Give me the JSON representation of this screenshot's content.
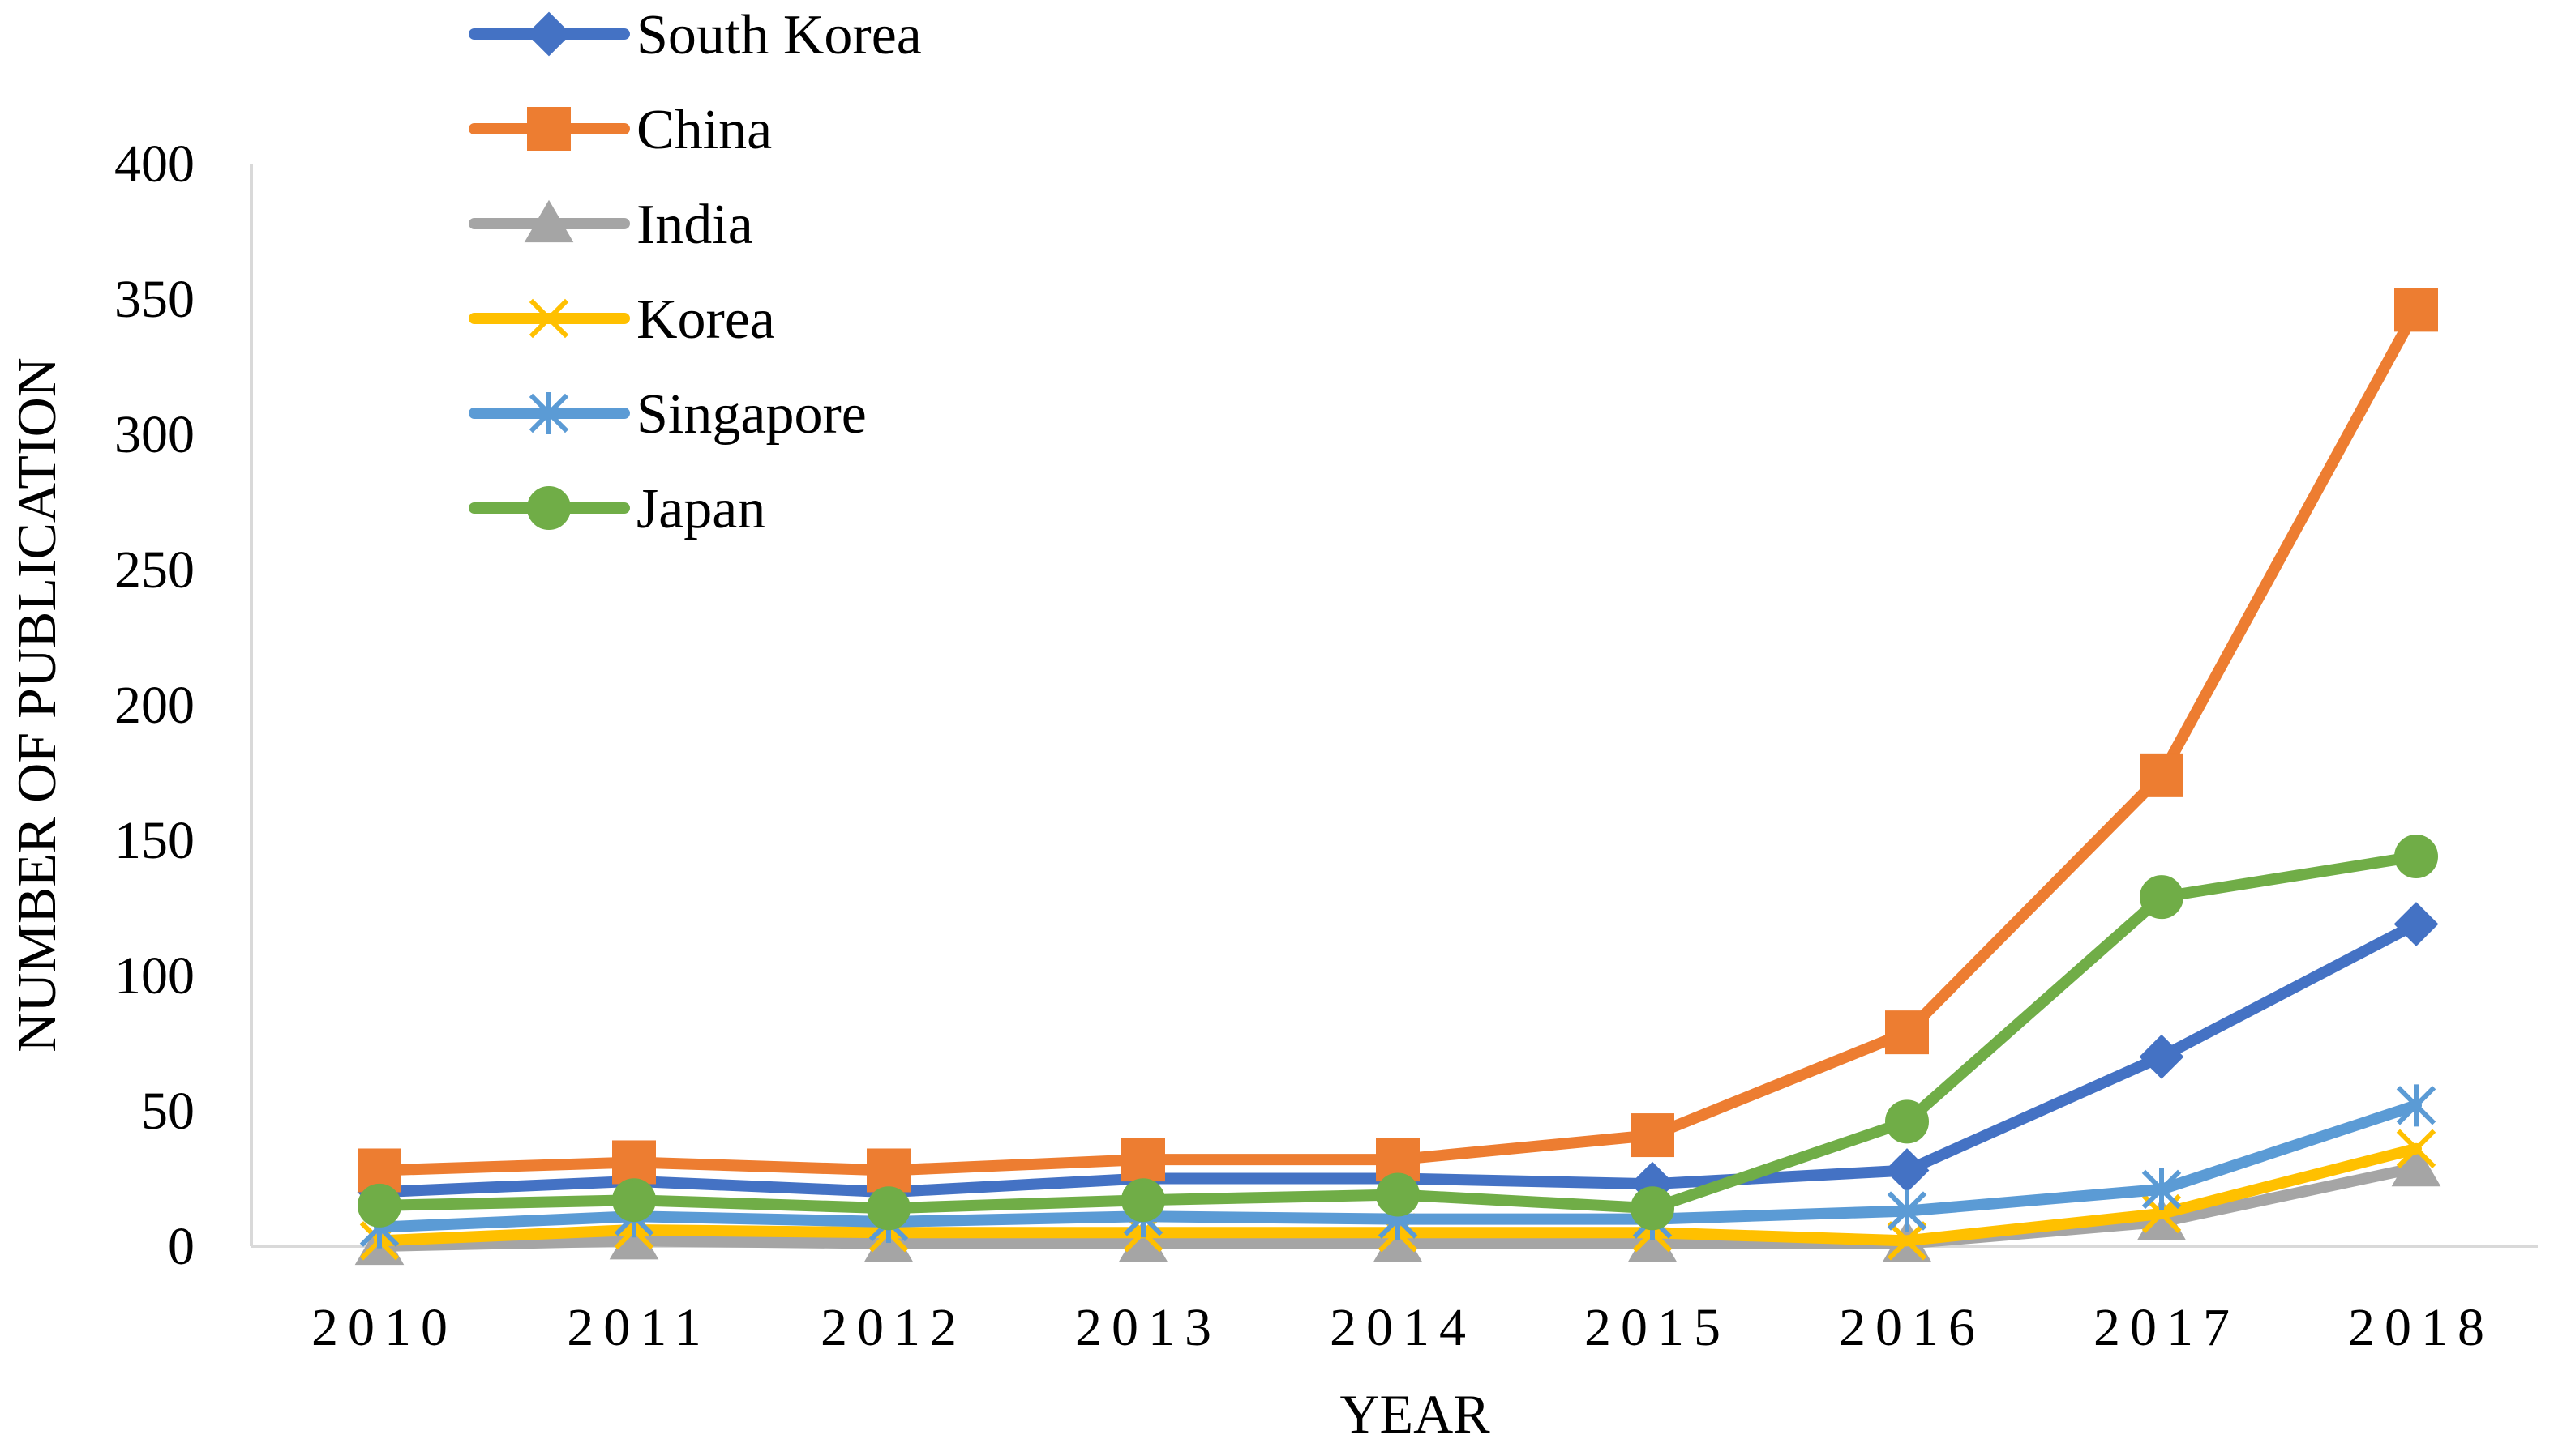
{
  "chart_data": {
    "type": "line",
    "title": "",
    "xlabel": "YEAR",
    "ylabel": "NUMBER OF PUBLICATION",
    "x": [
      "2010",
      "2011",
      "2012",
      "2013",
      "2014",
      "2015",
      "2016",
      "2017",
      "2018"
    ],
    "ylim": [
      0,
      400
    ],
    "yticks": [
      0,
      50,
      100,
      150,
      200,
      250,
      300,
      350,
      400
    ],
    "grid": false,
    "legend_position": "top-left",
    "series": [
      {
        "name": "South Korea",
        "color": "#4472C4",
        "marker": "diamond",
        "values": [
          20,
          24,
          20,
          25,
          25,
          23,
          28,
          70,
          119
        ]
      },
      {
        "name": "China",
        "color": "#ED7D31",
        "marker": "square",
        "values": [
          28,
          31,
          28,
          32,
          32,
          41,
          79,
          174,
          346
        ]
      },
      {
        "name": " India",
        "color": "#A5A5A5",
        "marker": "triangle",
        "values": [
          0,
          2,
          1,
          1,
          1,
          1,
          1,
          9,
          29
        ]
      },
      {
        "name": "Korea",
        "color": "#FFC000",
        "marker": "x",
        "values": [
          2,
          6,
          5,
          5,
          5,
          5,
          2,
          12,
          36
        ]
      },
      {
        "name": "Singapore",
        "color": "#5B9BD5",
        "marker": "asterisk",
        "values": [
          7,
          11,
          9,
          11,
          10,
          10,
          13,
          21,
          52
        ]
      },
      {
        "name": " Japan",
        "color": "#70AD47",
        "marker": "circle",
        "values": [
          15,
          17,
          14,
          17,
          19,
          14,
          46,
          129,
          144
        ]
      }
    ]
  }
}
